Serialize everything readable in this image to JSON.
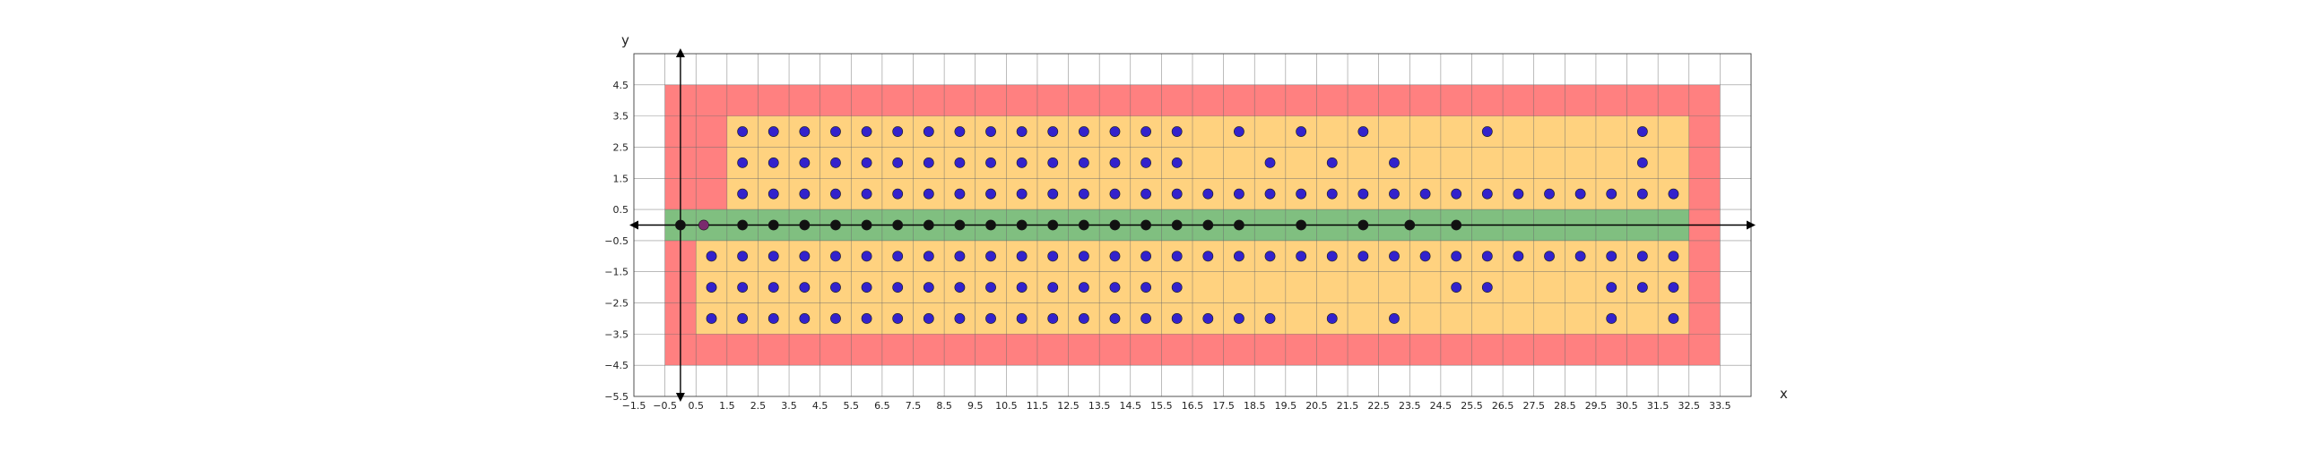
{
  "chart_data": {
    "type": "scatter",
    "title": "",
    "xlabel": "x",
    "ylabel": "y",
    "xlim": [
      -1.5,
      34.5
    ],
    "ylim": [
      -5.5,
      5.5
    ],
    "grid": true,
    "x_ticks": [
      -1.5,
      -0.5,
      0.5,
      1.5,
      2.5,
      3.5,
      4.5,
      5.5,
      6.5,
      7.5,
      8.5,
      9.5,
      10.5,
      11.5,
      12.5,
      13.5,
      14.5,
      15.5,
      16.5,
      17.5,
      18.5,
      19.5,
      20.5,
      21.5,
      22.5,
      23.5,
      24.5,
      25.5,
      26.5,
      27.5,
      28.5,
      29.5,
      30.5,
      31.5,
      32.5,
      33.5
    ],
    "y_ticks": [
      4.5,
      3.5,
      2.5,
      1.5,
      0.5,
      -0.5,
      -1.5,
      -2.5,
      -3.5,
      -4.5,
      -5.5
    ],
    "tick_labels_x": [
      "−1.5",
      "−0.5",
      "0.5",
      "1.5",
      "2.5",
      "3.5",
      "4.5",
      "5.5",
      "6.5",
      "7.5",
      "8.5",
      "9.5",
      "10.5",
      "11.5",
      "12.5",
      "13.5",
      "14.5",
      "15.5",
      "16.5",
      "17.5",
      "18.5",
      "19.5",
      "20.5",
      "21.5",
      "22.5",
      "23.5",
      "24.5",
      "25.5",
      "26.5",
      "27.5",
      "28.5",
      "29.5",
      "30.5",
      "31.5",
      "32.5",
      "33.5"
    ],
    "tick_labels_y": [
      "4.5",
      "3.5",
      "2.5",
      "1.5",
      "0.5",
      "−0.5",
      "−1.5",
      "−2.5",
      "−3.5",
      "−4.5",
      "−5.5"
    ],
    "regions": [
      {
        "color": "#ff8080",
        "x": [
          -0.5,
          33.5
        ],
        "y": [
          -4.5,
          4.5
        ]
      },
      {
        "color": "#ffd27f",
        "x": [
          1.5,
          32.5
        ],
        "y": [
          0.5,
          3.5
        ]
      },
      {
        "color": "#ffd27f",
        "x": [
          0.5,
          32.5
        ],
        "y": [
          -3.5,
          -0.5
        ]
      },
      {
        "color": "#80bf80",
        "x": [
          -0.5,
          32.5
        ],
        "y": [
          -0.5,
          0.5
        ]
      }
    ],
    "series": [
      {
        "color": "#3322cc",
        "points": [
          [
            2,
            3
          ],
          [
            3,
            3
          ],
          [
            4,
            3
          ],
          [
            5,
            3
          ],
          [
            6,
            3
          ],
          [
            7,
            3
          ],
          [
            8,
            3
          ],
          [
            9,
            3
          ],
          [
            10,
            3
          ],
          [
            11,
            3
          ],
          [
            12,
            3
          ],
          [
            13,
            3
          ],
          [
            14,
            3
          ],
          [
            15,
            3
          ],
          [
            16,
            3
          ],
          [
            18,
            3
          ],
          [
            20,
            3
          ],
          [
            22,
            3
          ],
          [
            26,
            3
          ],
          [
            31,
            3
          ],
          [
            2,
            2
          ],
          [
            3,
            2
          ],
          [
            4,
            2
          ],
          [
            5,
            2
          ],
          [
            6,
            2
          ],
          [
            7,
            2
          ],
          [
            8,
            2
          ],
          [
            9,
            2
          ],
          [
            10,
            2
          ],
          [
            11,
            2
          ],
          [
            12,
            2
          ],
          [
            13,
            2
          ],
          [
            14,
            2
          ],
          [
            15,
            2
          ],
          [
            16,
            2
          ],
          [
            19,
            2
          ],
          [
            21,
            2
          ],
          [
            23,
            2
          ],
          [
            31,
            2
          ],
          [
            2,
            1
          ],
          [
            3,
            1
          ],
          [
            4,
            1
          ],
          [
            5,
            1
          ],
          [
            6,
            1
          ],
          [
            7,
            1
          ],
          [
            8,
            1
          ],
          [
            9,
            1
          ],
          [
            10,
            1
          ],
          [
            11,
            1
          ],
          [
            12,
            1
          ],
          [
            13,
            1
          ],
          [
            14,
            1
          ],
          [
            15,
            1
          ],
          [
            16,
            1
          ],
          [
            17,
            1
          ],
          [
            18,
            1
          ],
          [
            19,
            1
          ],
          [
            20,
            1
          ],
          [
            21,
            1
          ],
          [
            22,
            1
          ],
          [
            23,
            1
          ],
          [
            24,
            1
          ],
          [
            25,
            1
          ],
          [
            26,
            1
          ],
          [
            27,
            1
          ],
          [
            28,
            1
          ],
          [
            29,
            1
          ],
          [
            30,
            1
          ],
          [
            31,
            1
          ],
          [
            32,
            1
          ],
          [
            1,
            -1
          ],
          [
            2,
            -1
          ],
          [
            3,
            -1
          ],
          [
            4,
            -1
          ],
          [
            5,
            -1
          ],
          [
            6,
            -1
          ],
          [
            7,
            -1
          ],
          [
            8,
            -1
          ],
          [
            9,
            -1
          ],
          [
            10,
            -1
          ],
          [
            11,
            -1
          ],
          [
            12,
            -1
          ],
          [
            13,
            -1
          ],
          [
            14,
            -1
          ],
          [
            15,
            -1
          ],
          [
            16,
            -1
          ],
          [
            17,
            -1
          ],
          [
            18,
            -1
          ],
          [
            19,
            -1
          ],
          [
            20,
            -1
          ],
          [
            21,
            -1
          ],
          [
            22,
            -1
          ],
          [
            23,
            -1
          ],
          [
            24,
            -1
          ],
          [
            25,
            -1
          ],
          [
            26,
            -1
          ],
          [
            27,
            -1
          ],
          [
            28,
            -1
          ],
          [
            29,
            -1
          ],
          [
            30,
            -1
          ],
          [
            31,
            -1
          ],
          [
            32,
            -1
          ],
          [
            1,
            -2
          ],
          [
            2,
            -2
          ],
          [
            3,
            -2
          ],
          [
            4,
            -2
          ],
          [
            5,
            -2
          ],
          [
            6,
            -2
          ],
          [
            7,
            -2
          ],
          [
            8,
            -2
          ],
          [
            9,
            -2
          ],
          [
            10,
            -2
          ],
          [
            11,
            -2
          ],
          [
            12,
            -2
          ],
          [
            13,
            -2
          ],
          [
            14,
            -2
          ],
          [
            15,
            -2
          ],
          [
            16,
            -2
          ],
          [
            25,
            -2
          ],
          [
            26,
            -2
          ],
          [
            30,
            -2
          ],
          [
            31,
            -2
          ],
          [
            32,
            -2
          ],
          [
            1,
            -3
          ],
          [
            2,
            -3
          ],
          [
            3,
            -3
          ],
          [
            4,
            -3
          ],
          [
            5,
            -3
          ],
          [
            6,
            -3
          ],
          [
            7,
            -3
          ],
          [
            8,
            -3
          ],
          [
            9,
            -3
          ],
          [
            10,
            -3
          ],
          [
            11,
            -3
          ],
          [
            12,
            -3
          ],
          [
            13,
            -3
          ],
          [
            14,
            -3
          ],
          [
            15,
            -3
          ],
          [
            16,
            -3
          ],
          [
            17,
            -3
          ],
          [
            18,
            -3
          ],
          [
            19,
            -3
          ],
          [
            21,
            -3
          ],
          [
            23,
            -3
          ],
          [
            30,
            -3
          ],
          [
            32,
            -3
          ]
        ]
      },
      {
        "color": "#111111",
        "points": [
          [
            0,
            0
          ],
          [
            2,
            0
          ],
          [
            3,
            0
          ],
          [
            4,
            0
          ],
          [
            5,
            0
          ],
          [
            6,
            0
          ],
          [
            7,
            0
          ],
          [
            8,
            0
          ],
          [
            9,
            0
          ],
          [
            10,
            0
          ],
          [
            11,
            0
          ],
          [
            12,
            0
          ],
          [
            13,
            0
          ],
          [
            14,
            0
          ],
          [
            15,
            0
          ],
          [
            16,
            0
          ],
          [
            17,
            0
          ],
          [
            18,
            0
          ],
          [
            20,
            0
          ],
          [
            22,
            0
          ],
          [
            23.5,
            0
          ],
          [
            25,
            0
          ]
        ]
      },
      {
        "color": "#7a2a6e",
        "points": [
          [
            0.75,
            0
          ]
        ]
      }
    ]
  }
}
